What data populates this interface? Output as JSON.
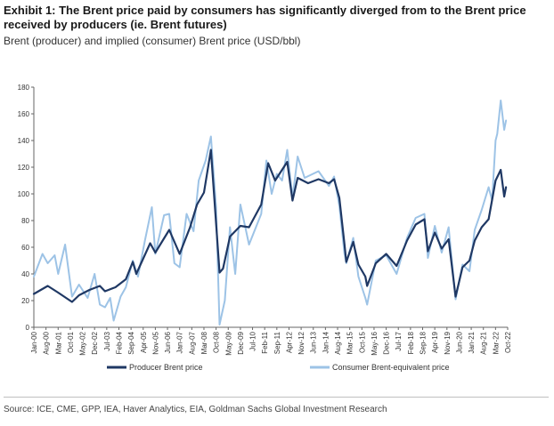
{
  "header": {
    "title": "Exhibit 1: The Brent price paid by consumers has significantly diverged from to the Brent price received by producers (ie. Brent futures)",
    "subtitle": "Brent (producer) and implied (consumer) Brent price (USD/bbl)"
  },
  "footer": {
    "source": "Source: ICE, CME, GPP, IEA, Haver Analytics, EIA, Goldman Sachs Global Investment Research"
  },
  "colors": {
    "producer": "#1f3864",
    "consumer": "#9dc3e6",
    "axis": "#666666"
  },
  "chart_data": {
    "type": "line",
    "title": "Brent (producer) and implied (consumer) Brent price (USD/bbl)",
    "xlabel": "",
    "ylabel": "",
    "ylim": [
      0,
      180
    ],
    "yticks": [
      0,
      20,
      40,
      60,
      80,
      100,
      120,
      140,
      160,
      180
    ],
    "xlim": [
      "Jan-00",
      "Oct-22"
    ],
    "xtick_labels": [
      "Jan-00",
      "Aug-00",
      "Mar-01",
      "Oct-01",
      "May-02",
      "Dec-02",
      "Jul-03",
      "Feb-04",
      "Sep-04",
      "Apr-05",
      "Nov-05",
      "Jun-06",
      "Jan-07",
      "Aug-07",
      "Mar-08",
      "Oct-08",
      "May-09",
      "Dec-09",
      "Jul-10",
      "Feb-11",
      "Sep-11",
      "Apr-12",
      "Nov-12",
      "Jun-13",
      "Jan-14",
      "Aug-14",
      "Mar-15",
      "Oct-15",
      "May-16",
      "Dec-16",
      "Jul-17",
      "Feb-18",
      "Sep-18",
      "Apr-19",
      "Nov-19",
      "Jun-20",
      "Jan-21",
      "Aug-21",
      "Mar-22",
      "Oct-22"
    ],
    "grid": false,
    "legend": "bottom",
    "series": [
      {
        "name": "Producer Brent price",
        "points": [
          [
            "2000-01",
            25
          ],
          [
            "2000-09",
            31
          ],
          [
            "2001-03",
            26
          ],
          [
            "2001-11",
            19
          ],
          [
            "2002-03",
            24
          ],
          [
            "2002-09",
            28
          ],
          [
            "2003-03",
            31
          ],
          [
            "2003-06",
            27
          ],
          [
            "2003-12",
            30
          ],
          [
            "2004-06",
            36
          ],
          [
            "2004-10",
            49
          ],
          [
            "2004-12",
            40
          ],
          [
            "2005-08",
            63
          ],
          [
            "2005-11",
            56
          ],
          [
            "2006-07",
            73
          ],
          [
            "2007-01",
            55
          ],
          [
            "2007-07",
            75
          ],
          [
            "2007-11",
            92
          ],
          [
            "2008-03",
            101
          ],
          [
            "2008-07",
            133
          ],
          [
            "2008-12",
            41
          ],
          [
            "2009-02",
            44
          ],
          [
            "2009-06",
            68
          ],
          [
            "2009-12",
            76
          ],
          [
            "2010-05",
            75
          ],
          [
            "2010-12",
            92
          ],
          [
            "2011-04",
            123
          ],
          [
            "2011-08",
            110
          ],
          [
            "2012-03",
            124
          ],
          [
            "2012-06",
            95
          ],
          [
            "2012-09",
            112
          ],
          [
            "2013-03",
            108
          ],
          [
            "2013-09",
            111
          ],
          [
            "2014-03",
            108
          ],
          [
            "2014-06",
            111
          ],
          [
            "2014-09",
            97
          ],
          [
            "2014-12",
            62
          ],
          [
            "2015-01",
            49
          ],
          [
            "2015-05",
            64
          ],
          [
            "2015-08",
            47
          ],
          [
            "2015-12",
            38
          ],
          [
            "2016-01",
            31
          ],
          [
            "2016-06",
            48
          ],
          [
            "2016-12",
            55
          ],
          [
            "2017-06",
            46
          ],
          [
            "2017-12",
            65
          ],
          [
            "2018-05",
            77
          ],
          [
            "2018-10",
            81
          ],
          [
            "2018-12",
            57
          ],
          [
            "2019-04",
            71
          ],
          [
            "2019-08",
            59
          ],
          [
            "2019-12",
            66
          ],
          [
            "2020-04",
            23
          ],
          [
            "2020-08",
            45
          ],
          [
            "2020-12",
            50
          ],
          [
            "2021-03",
            65
          ],
          [
            "2021-07",
            75
          ],
          [
            "2021-11",
            81
          ],
          [
            "2022-03",
            110
          ],
          [
            "2022-06",
            118
          ],
          [
            "2022-08",
            98
          ],
          [
            "2022-09",
            105
          ]
        ]
      },
      {
        "name": "Consumer Brent-equivalent price",
        "points": [
          [
            "2000-01",
            38
          ],
          [
            "2000-06",
            55
          ],
          [
            "2000-09",
            48
          ],
          [
            "2001-01",
            54
          ],
          [
            "2001-03",
            40
          ],
          [
            "2001-07",
            62
          ],
          [
            "2001-11",
            23
          ],
          [
            "2002-03",
            32
          ],
          [
            "2002-08",
            22
          ],
          [
            "2002-12",
            40
          ],
          [
            "2003-03",
            17
          ],
          [
            "2003-06",
            15
          ],
          [
            "2003-09",
            22
          ],
          [
            "2003-11",
            5
          ],
          [
            "2004-03",
            23
          ],
          [
            "2004-06",
            30
          ],
          [
            "2004-10",
            50
          ],
          [
            "2005-01",
            38
          ],
          [
            "2005-05",
            65
          ],
          [
            "2005-09",
            90
          ],
          [
            "2005-11",
            55
          ],
          [
            "2006-04",
            84
          ],
          [
            "2006-07",
            85
          ],
          [
            "2006-10",
            48
          ],
          [
            "2007-01",
            45
          ],
          [
            "2007-05",
            85
          ],
          [
            "2007-09",
            72
          ],
          [
            "2007-12",
            110
          ],
          [
            "2008-04",
            125
          ],
          [
            "2008-07",
            143
          ],
          [
            "2008-10",
            90
          ],
          [
            "2008-12",
            2
          ],
          [
            "2009-03",
            20
          ],
          [
            "2009-06",
            75
          ],
          [
            "2009-09",
            40
          ],
          [
            "2009-12",
            92
          ],
          [
            "2010-05",
            62
          ],
          [
            "2010-12",
            85
          ],
          [
            "2011-03",
            125
          ],
          [
            "2011-06",
            100
          ],
          [
            "2011-09",
            115
          ],
          [
            "2011-12",
            110
          ],
          [
            "2012-03",
            133
          ],
          [
            "2012-06",
            97
          ],
          [
            "2012-09",
            128
          ],
          [
            "2013-01",
            112
          ],
          [
            "2013-09",
            117
          ],
          [
            "2014-03",
            106
          ],
          [
            "2014-06",
            113
          ],
          [
            "2014-09",
            91
          ],
          [
            "2014-12",
            55
          ],
          [
            "2015-01",
            48
          ],
          [
            "2015-05",
            67
          ],
          [
            "2015-08",
            38
          ],
          [
            "2015-12",
            22
          ],
          [
            "2016-01",
            17
          ],
          [
            "2016-06",
            50
          ],
          [
            "2016-12",
            54
          ],
          [
            "2017-06",
            40
          ],
          [
            "2017-12",
            67
          ],
          [
            "2018-05",
            82
          ],
          [
            "2018-10",
            85
          ],
          [
            "2018-12",
            52
          ],
          [
            "2019-04",
            76
          ],
          [
            "2019-08",
            56
          ],
          [
            "2019-12",
            75
          ],
          [
            "2020-04",
            21
          ],
          [
            "2020-08",
            47
          ],
          [
            "2020-12",
            42
          ],
          [
            "2021-03",
            73
          ],
          [
            "2021-07",
            88
          ],
          [
            "2021-11",
            105
          ],
          [
            "2022-01",
            95
          ],
          [
            "2022-03",
            140
          ],
          [
            "2022-04",
            145
          ],
          [
            "2022-06",
            170
          ],
          [
            "2022-08",
            148
          ],
          [
            "2022-09",
            155
          ]
        ]
      }
    ]
  }
}
